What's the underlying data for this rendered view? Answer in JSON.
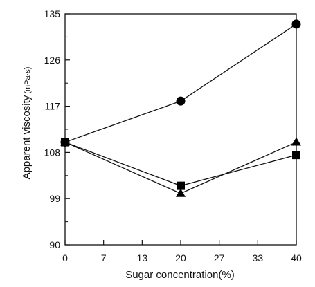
{
  "chart_data": {
    "type": "line",
    "title": "",
    "xlabel": "Sugar concentration(%)",
    "ylabel": "Apparent viscosity",
    "ylabel_unit": "(mPa·s)",
    "x": [
      0,
      20,
      40
    ],
    "xticks": [
      "0",
      "7",
      "13",
      "20",
      "27",
      "33",
      "40"
    ],
    "xlim": [
      0,
      40
    ],
    "yticks": [
      "90",
      "99",
      "108",
      "117",
      "126",
      "135"
    ],
    "ylim": [
      90,
      135
    ],
    "grid": false,
    "legend": "none",
    "series": [
      {
        "marker": "circle",
        "values": [
          110,
          118,
          133
        ]
      },
      {
        "marker": "triangle",
        "values": [
          110,
          100,
          110
        ]
      },
      {
        "marker": "square",
        "values": [
          110,
          101.5,
          107.5
        ]
      }
    ]
  }
}
